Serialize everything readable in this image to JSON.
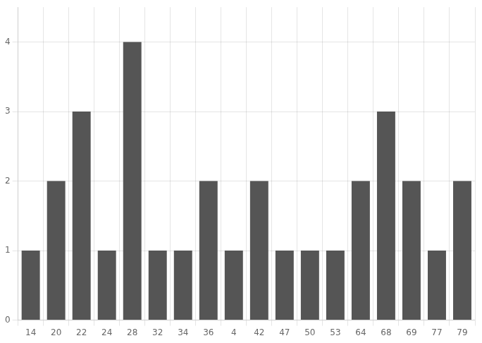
{
  "chart_data": {
    "type": "bar",
    "categories": [
      "14",
      "20",
      "22",
      "24",
      "28",
      "32",
      "34",
      "36",
      "4",
      "42",
      "47",
      "50",
      "53",
      "64",
      "68",
      "69",
      "77",
      "79"
    ],
    "values": [
      1,
      2,
      3,
      1,
      4,
      1,
      1,
      2,
      1,
      2,
      1,
      1,
      1,
      2,
      3,
      2,
      1,
      2
    ],
    "color": "#555555",
    "ylim": [
      0,
      4.5
    ],
    "yticks": [
      0,
      1,
      2,
      3,
      4
    ],
    "grid": true
  }
}
